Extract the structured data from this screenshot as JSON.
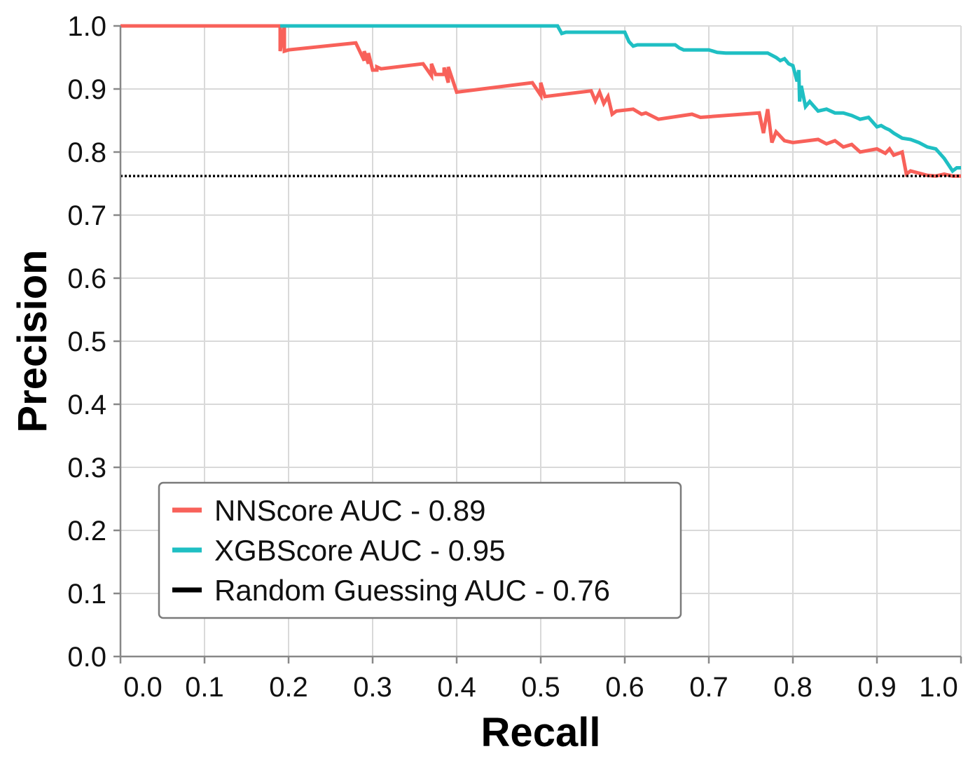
{
  "chart_data": {
    "type": "line",
    "title": "",
    "xlabel": "Recall",
    "ylabel": "Precision",
    "xlim": [
      0.0,
      1.0
    ],
    "ylim": [
      0.0,
      1.0
    ],
    "x_ticks": [
      "0.0",
      "0.1",
      "0.2",
      "0.3",
      "0.4",
      "0.5",
      "0.6",
      "0.7",
      "0.8",
      "0.9",
      "1.0"
    ],
    "y_ticks": [
      "0.0",
      "0.1",
      "0.2",
      "0.3",
      "0.4",
      "0.5",
      "0.6",
      "0.7",
      "0.8",
      "0.9",
      "1.0"
    ],
    "grid": true,
    "legend_position": "bottom-left",
    "series": [
      {
        "name": "NNScore AUC - 0.89",
        "color": "#f8615a",
        "style": "solid",
        "x": [
          0.0,
          0.19,
          0.19,
          0.195,
          0.195,
          0.2,
          0.28,
          0.29,
          0.29,
          0.295,
          0.295,
          0.3,
          0.305,
          0.305,
          0.31,
          0.36,
          0.37,
          0.37,
          0.375,
          0.385,
          0.385,
          0.39,
          0.39,
          0.4,
          0.49,
          0.5,
          0.5,
          0.505,
          0.56,
          0.565,
          0.57,
          0.575,
          0.58,
          0.585,
          0.59,
          0.61,
          0.62,
          0.625,
          0.64,
          0.68,
          0.69,
          0.7,
          0.76,
          0.765,
          0.77,
          0.775,
          0.78,
          0.79,
          0.8,
          0.83,
          0.84,
          0.85,
          0.86,
          0.87,
          0.88,
          0.9,
          0.91,
          0.915,
          0.92,
          0.93,
          0.935,
          0.94,
          0.96,
          0.97,
          0.98,
          0.99,
          1.0
        ],
        "y": [
          1.0,
          1.0,
          0.96,
          1.0,
          0.96,
          0.962,
          0.973,
          0.945,
          0.96,
          0.94,
          0.957,
          0.93,
          0.93,
          0.935,
          0.932,
          0.94,
          0.921,
          0.94,
          0.923,
          0.923,
          0.934,
          0.91,
          0.935,
          0.895,
          0.91,
          0.89,
          0.91,
          0.888,
          0.897,
          0.881,
          0.895,
          0.877,
          0.888,
          0.86,
          0.865,
          0.868,
          0.86,
          0.862,
          0.852,
          0.86,
          0.855,
          0.856,
          0.862,
          0.83,
          0.868,
          0.815,
          0.832,
          0.818,
          0.815,
          0.82,
          0.813,
          0.818,
          0.808,
          0.812,
          0.8,
          0.805,
          0.798,
          0.805,
          0.795,
          0.8,
          0.765,
          0.77,
          0.763,
          0.762,
          0.765,
          0.762,
          0.762
        ]
      },
      {
        "name": "XGBScore AUC - 0.95",
        "color": "#1fbfc3",
        "style": "solid",
        "x": [
          0.19,
          0.52,
          0.525,
          0.53,
          0.6,
          0.605,
          0.61,
          0.615,
          0.66,
          0.665,
          0.67,
          0.7,
          0.71,
          0.72,
          0.77,
          0.78,
          0.785,
          0.79,
          0.795,
          0.8,
          0.805,
          0.807,
          0.808,
          0.81,
          0.815,
          0.82,
          0.83,
          0.84,
          0.85,
          0.86,
          0.87,
          0.875,
          0.88,
          0.89,
          0.9,
          0.905,
          0.91,
          0.915,
          0.92,
          0.93,
          0.94,
          0.95,
          0.96,
          0.97,
          0.98,
          0.985,
          0.99,
          0.995,
          1.0
        ],
        "y": [
          1.0,
          1.0,
          0.988,
          0.99,
          0.99,
          0.975,
          0.968,
          0.97,
          0.97,
          0.965,
          0.962,
          0.962,
          0.958,
          0.957,
          0.957,
          0.95,
          0.945,
          0.948,
          0.94,
          0.937,
          0.912,
          0.93,
          0.88,
          0.905,
          0.872,
          0.88,
          0.865,
          0.868,
          0.862,
          0.862,
          0.858,
          0.855,
          0.852,
          0.855,
          0.84,
          0.842,
          0.838,
          0.835,
          0.83,
          0.822,
          0.82,
          0.815,
          0.808,
          0.805,
          0.79,
          0.78,
          0.77,
          0.775,
          0.775
        ]
      },
      {
        "name": "Random Guessing AUC - 0.76",
        "color": "#000000",
        "style": "dotted",
        "x": [
          0.0,
          1.0
        ],
        "y": [
          0.762,
          0.762
        ]
      }
    ]
  }
}
